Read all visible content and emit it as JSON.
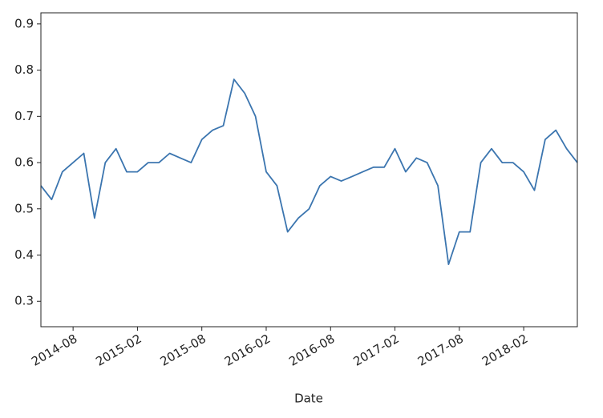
{
  "chart_data": {
    "type": "line",
    "xlabel": "Date",
    "x": [
      "2014-05",
      "2014-06",
      "2014-07",
      "2014-08",
      "2014-09",
      "2014-10",
      "2014-11",
      "2014-12",
      "2015-01",
      "2015-02",
      "2015-03",
      "2015-04",
      "2015-05",
      "2015-06",
      "2015-07",
      "2015-08",
      "2015-09",
      "2015-10",
      "2015-11",
      "2015-12",
      "2016-01",
      "2016-02",
      "2016-03",
      "2016-04",
      "2016-05",
      "2016-06",
      "2016-07",
      "2016-08",
      "2016-09",
      "2016-10",
      "2016-11",
      "2016-12",
      "2017-01",
      "2017-02",
      "2017-03",
      "2017-04",
      "2017-05",
      "2017-06",
      "2017-07",
      "2017-08",
      "2017-09",
      "2017-10",
      "2017-11",
      "2017-12",
      "2018-01",
      "2018-02",
      "2018-03",
      "2018-04",
      "2018-05",
      "2018-06",
      "2018-07"
    ],
    "series": [
      {
        "color": "#3b75af",
        "values": [
          0.55,
          0.52,
          0.58,
          0.6,
          0.62,
          0.48,
          0.6,
          0.63,
          0.58,
          0.58,
          0.6,
          0.6,
          0.62,
          0.61,
          0.6,
          0.65,
          0.67,
          0.68,
          0.78,
          0.75,
          0.7,
          0.58,
          0.55,
          0.45,
          0.48,
          0.5,
          0.55,
          0.57,
          0.56,
          0.57,
          0.58,
          0.59,
          0.59,
          0.63,
          0.58,
          0.61,
          0.6,
          0.55,
          0.38,
          0.45,
          0.45,
          0.6,
          0.63,
          0.6,
          0.6,
          0.58,
          0.54,
          0.65,
          0.67,
          0.63,
          0.6
        ]
      }
    ],
    "xlim": [
      "2014-05",
      "2018-07"
    ],
    "xticks": [
      "2014-08",
      "2015-02",
      "2015-08",
      "2016-02",
      "2016-08",
      "2017-02",
      "2017-08",
      "2018-02"
    ],
    "ylim": [
      0.245,
      0.924
    ],
    "yticks": [
      0.3,
      0.4,
      0.5,
      0.6,
      0.7,
      0.8,
      0.9
    ]
  }
}
